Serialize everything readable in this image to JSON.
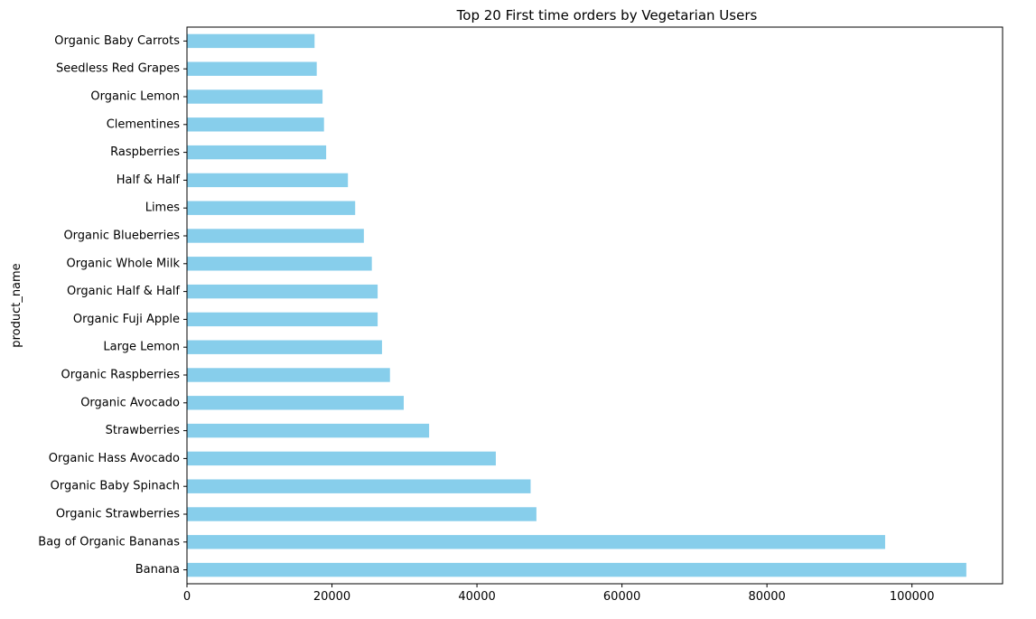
{
  "chart_data": {
    "type": "bar",
    "orientation": "horizontal",
    "title": "Top 20 First time orders by Vegetarian Users",
    "xlabel": "",
    "ylabel": "product_name",
    "xlim": [
      0,
      112500
    ],
    "xticks": [
      0,
      20000,
      40000,
      60000,
      80000,
      100000
    ],
    "xtick_labels": [
      "0",
      "20000",
      "40000",
      "60000",
      "80000",
      "100000"
    ],
    "grid": false,
    "legend": "none",
    "bar_color": "#87CEEB",
    "categories": [
      "Organic Baby Carrots",
      "Seedless Red Grapes",
      "Organic Lemon",
      "Clementines",
      "Raspberries",
      "Half & Half",
      "Limes",
      "Organic Blueberries",
      "Organic Whole Milk",
      "Organic Half & Half",
      "Organic Fuji Apple",
      "Large Lemon",
      "Organic Raspberries",
      "Organic Avocado",
      "Strawberries",
      "Organic Hass Avocado",
      "Organic Baby Spinach",
      "Organic Strawberries",
      "Bag of Organic Bananas",
      "Banana"
    ],
    "values": [
      17600,
      17900,
      18700,
      18900,
      19200,
      22200,
      23200,
      24400,
      25500,
      26300,
      26300,
      26900,
      28000,
      29900,
      33400,
      42600,
      47400,
      48200,
      96300,
      107500
    ]
  }
}
